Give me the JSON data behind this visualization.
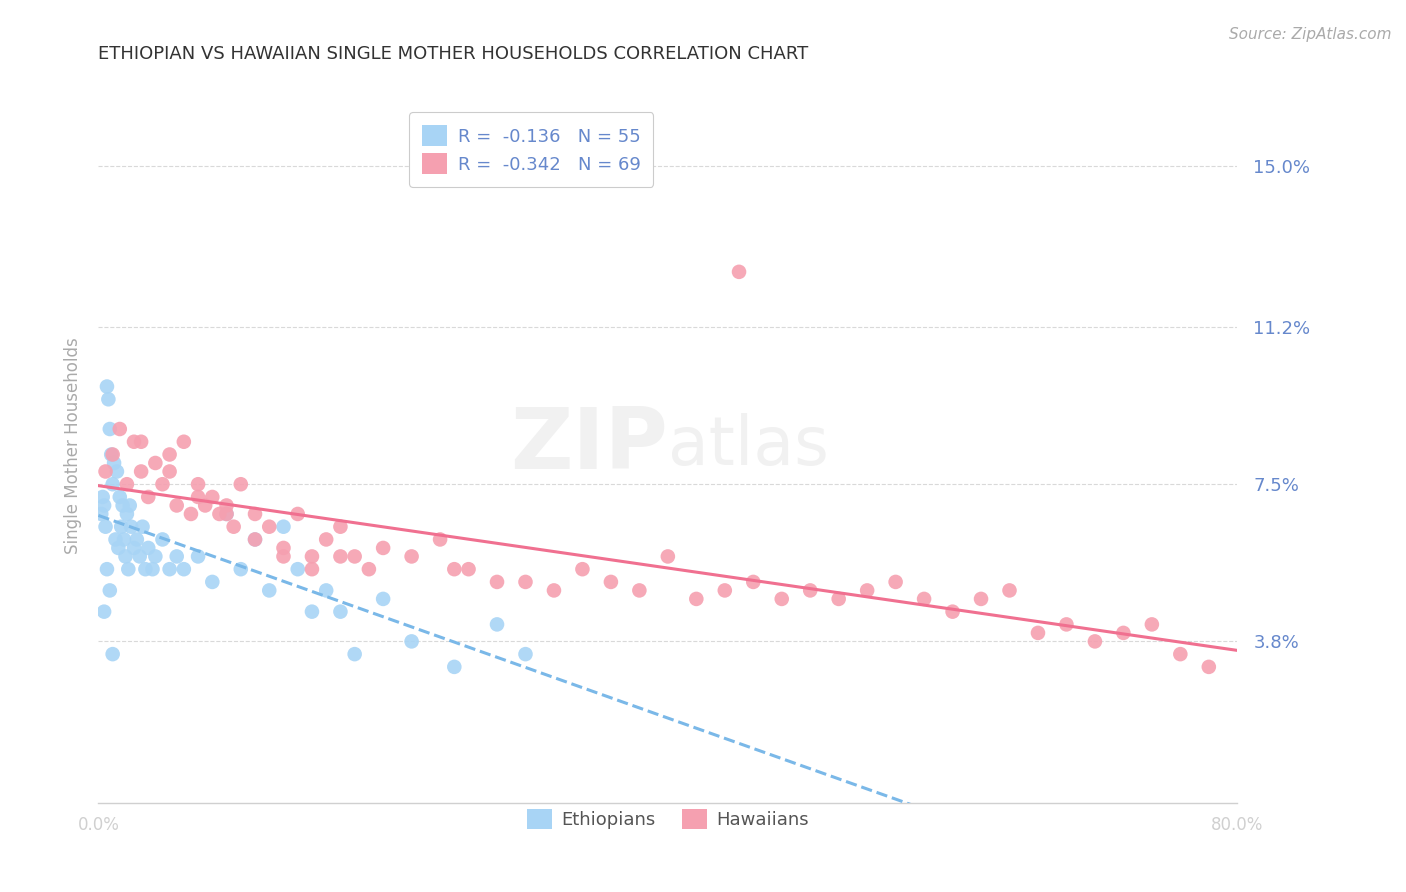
{
  "title": "ETHIOPIAN VS HAWAIIAN SINGLE MOTHER HOUSEHOLDS CORRELATION CHART",
  "source_text": "Source: ZipAtlas.com",
  "ylabel": "Single Mother Households",
  "xlim": [
    0.0,
    80.0
  ],
  "ylim": [
    0.0,
    16.8
  ],
  "yticks": [
    3.8,
    7.5,
    11.2,
    15.0
  ],
  "xticks": [
    0.0,
    20.0,
    40.0,
    60.0,
    80.0
  ],
  "xtick_labels": [
    "0.0%",
    "",
    "",
    "",
    "80.0%"
  ],
  "ytick_labels": [
    "3.8%",
    "7.5%",
    "11.2%",
    "15.0%"
  ],
  "background_color": "#ffffff",
  "grid_color": "#d0d0d0",
  "ethiopian_color": "#a8d4f5",
  "hawaiian_color": "#f5a0b0",
  "ethiopian_line_color": "#7ab8e8",
  "hawaiian_line_color": "#f07090",
  "title_color": "#333333",
  "tick_label_color": "#6688cc",
  "legend_r1": "R =  -0.136   N = 55",
  "legend_r2": "R =  -0.342   N = 69",
  "legend_label1": "Ethiopians",
  "legend_label2": "Hawaiians",
  "ethiopian_scatter_x": [
    0.2,
    0.3,
    0.4,
    0.5,
    0.6,
    0.7,
    0.8,
    0.9,
    1.0,
    1.1,
    1.2,
    1.3,
    1.4,
    1.5,
    1.6,
    1.7,
    1.8,
    1.9,
    2.0,
    2.1,
    2.2,
    2.3,
    2.5,
    2.7,
    2.9,
    3.1,
    3.3,
    3.5,
    3.8,
    4.0,
    4.5,
    5.0,
    5.5,
    6.0,
    7.0,
    8.0,
    9.0,
    10.0,
    11.0,
    12.0,
    13.0,
    14.0,
    15.0,
    16.0,
    17.0,
    18.0,
    20.0,
    22.0,
    25.0,
    28.0,
    30.0,
    0.4,
    0.6,
    0.8,
    1.0
  ],
  "ethiopian_scatter_y": [
    6.8,
    7.2,
    7.0,
    6.5,
    9.8,
    9.5,
    8.8,
    8.2,
    7.5,
    8.0,
    6.2,
    7.8,
    6.0,
    7.2,
    6.5,
    7.0,
    6.2,
    5.8,
    6.8,
    5.5,
    7.0,
    6.5,
    6.0,
    6.2,
    5.8,
    6.5,
    5.5,
    6.0,
    5.5,
    5.8,
    6.2,
    5.5,
    5.8,
    5.5,
    5.8,
    5.2,
    6.8,
    5.5,
    6.2,
    5.0,
    6.5,
    5.5,
    4.5,
    5.0,
    4.5,
    3.5,
    4.8,
    3.8,
    3.2,
    4.2,
    3.5,
    4.5,
    5.5,
    5.0,
    3.5
  ],
  "hawaiian_scatter_x": [
    0.5,
    1.0,
    1.5,
    2.0,
    2.5,
    3.0,
    3.5,
    4.0,
    4.5,
    5.0,
    5.5,
    6.0,
    6.5,
    7.0,
    7.5,
    8.0,
    8.5,
    9.0,
    9.5,
    10.0,
    11.0,
    12.0,
    13.0,
    14.0,
    15.0,
    16.0,
    17.0,
    18.0,
    19.0,
    20.0,
    22.0,
    24.0,
    26.0,
    28.0,
    30.0,
    32.0,
    34.0,
    36.0,
    38.0,
    40.0,
    42.0,
    44.0,
    46.0,
    48.0,
    50.0,
    52.0,
    54.0,
    56.0,
    58.0,
    60.0,
    62.0,
    64.0,
    66.0,
    68.0,
    70.0,
    72.0,
    74.0,
    76.0,
    78.0,
    3.0,
    5.0,
    7.0,
    9.0,
    11.0,
    13.0,
    15.0,
    17.0,
    25.0,
    45.0
  ],
  "hawaiian_scatter_y": [
    7.8,
    8.2,
    8.8,
    7.5,
    8.5,
    7.8,
    7.2,
    8.0,
    7.5,
    8.2,
    7.0,
    8.5,
    6.8,
    7.5,
    7.0,
    7.2,
    6.8,
    7.0,
    6.5,
    7.5,
    6.8,
    6.5,
    6.0,
    6.8,
    5.8,
    6.2,
    6.5,
    5.8,
    5.5,
    6.0,
    5.8,
    6.2,
    5.5,
    5.2,
    5.2,
    5.0,
    5.5,
    5.2,
    5.0,
    5.8,
    4.8,
    5.0,
    5.2,
    4.8,
    5.0,
    4.8,
    5.0,
    5.2,
    4.8,
    4.5,
    4.8,
    5.0,
    4.0,
    4.2,
    3.8,
    4.0,
    4.2,
    3.5,
    3.2,
    8.5,
    7.8,
    7.2,
    6.8,
    6.2,
    5.8,
    5.5,
    5.8,
    5.5,
    12.5
  ]
}
